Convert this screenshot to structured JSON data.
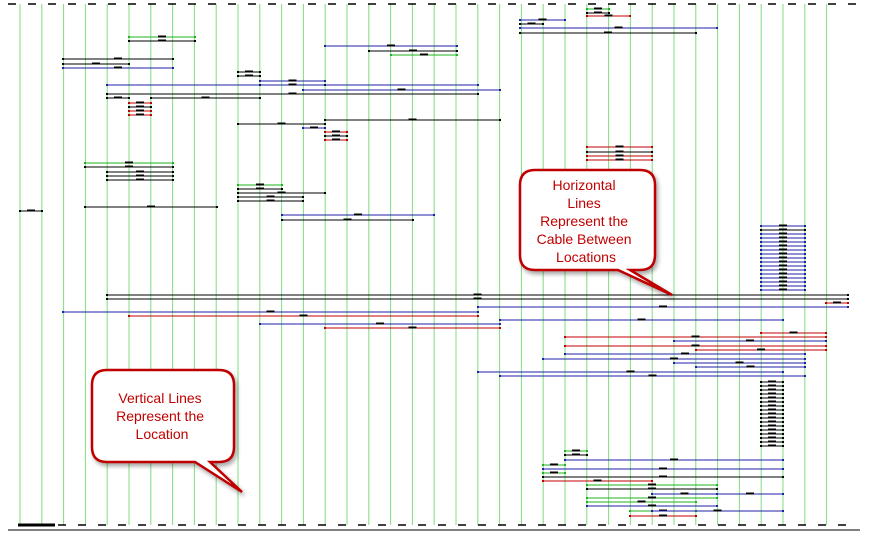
{
  "diagram": {
    "type": "cable-routing",
    "colors": {
      "location_line": "#7fdc7f",
      "cable_black": "#000000",
      "cable_blue": "#1f1fa8",
      "cable_red": "#c00000",
      "cable_green": "#1fb31f",
      "callout_border": "#c00000",
      "callout_text": "#c00000",
      "callout_fill": "#ffffff"
    },
    "location_count": 38
  },
  "callouts": {
    "horizontal": {
      "lines": [
        "Horizontal",
        "Lines",
        "Represent the",
        "Cable Between",
        "Locations"
      ]
    },
    "vertical": {
      "lines": [
        "Vertical Lines",
        "Represent the",
        "Location"
      ]
    }
  }
}
